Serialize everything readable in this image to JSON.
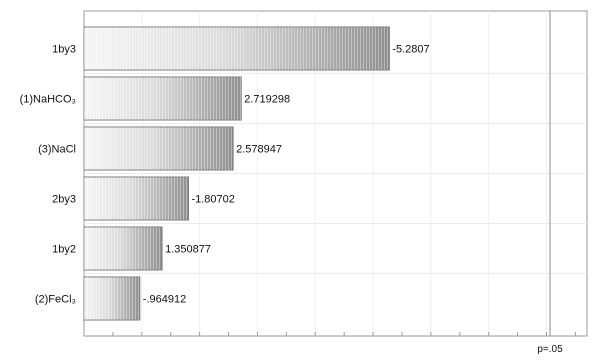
{
  "chart_data": {
    "type": "bar",
    "orientation": "horizontal",
    "categories": [
      "1by3",
      "(1)NaHCO₃",
      "(3)NaCl",
      "2by3",
      "1by2",
      "(2)FeCl₃"
    ],
    "values": [
      -5.2807,
      2.719298,
      2.578947,
      -1.80702,
      1.350877,
      -0.964912
    ],
    "value_labels": [
      "-5.2807",
      "2.719298",
      "2.578947",
      "-1.80702",
      "1.350877",
      "-.964912"
    ],
    "bar_length_basis": "absolute value",
    "xlim": [
      0,
      8.7
    ],
    "reference_line": {
      "value": 8.06,
      "label": "p=.05"
    },
    "grid": true,
    "colors": {
      "bar_light": "#f4f4f4",
      "bar_dark": "#9a9a9a",
      "bar_border": "#7a7a7a",
      "frame": "#9a9a9a",
      "grid": "#e6e6e6"
    }
  }
}
